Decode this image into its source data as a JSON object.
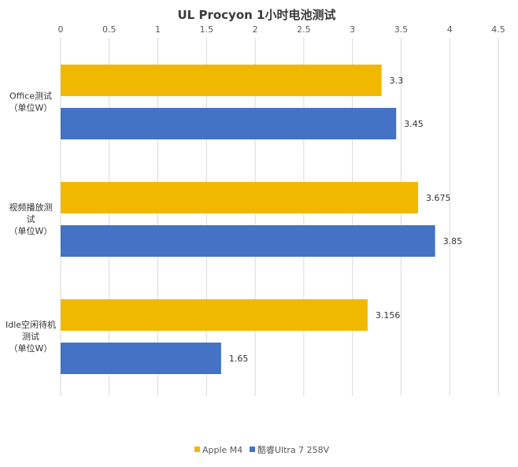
{
  "chart_data": {
    "type": "bar",
    "orientation": "horizontal",
    "title": "UL Procyon 1小时电池测试",
    "categories": [
      [
        "Office测试",
        "（单位W）"
      ],
      [
        "视频播放测",
        "试",
        "（单位W）"
      ],
      [
        "Idle空闲待机",
        "测试",
        "（单位W）"
      ]
    ],
    "series": [
      {
        "name": "Apple M4",
        "color": "#f0b900",
        "values": [
          3.3,
          3.675,
          3.156
        ],
        "labels": [
          "3.3",
          "3.675",
          "3.156"
        ]
      },
      {
        "name": "酷睿Ultra 7 258V",
        "color": "#4472c4",
        "values": [
          3.45,
          3.85,
          1.65
        ],
        "labels": [
          "3.45",
          "3.85",
          "1.65"
        ]
      }
    ],
    "xlim": [
      0,
      4.5
    ],
    "ticks": [
      "0",
      "0.5",
      "1",
      "1.5",
      "2",
      "2.5",
      "3",
      "3.5",
      "4",
      "4.5"
    ],
    "grid": true,
    "legend": "bottom"
  }
}
